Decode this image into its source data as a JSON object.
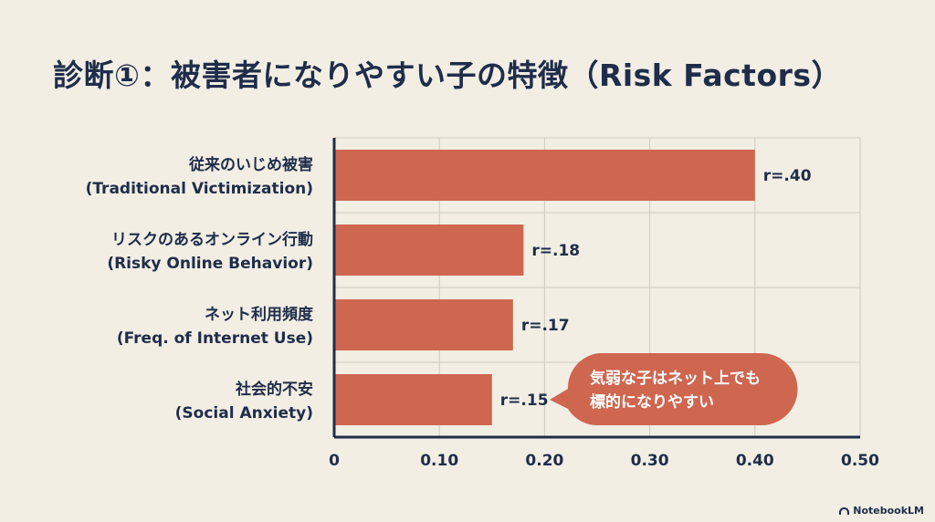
{
  "page_title": "診断①：被害者になりやすい子の特徴（Risk Factors）",
  "brand": "NotebookLM",
  "chart_data": {
    "type": "bar",
    "orientation": "horizontal",
    "categories": [
      [
        "従来のいじめ被害",
        "(Traditional Victimization)"
      ],
      [
        "リスクのあるオンライン行動",
        "(Risky Online Behavior)"
      ],
      [
        "ネット利用頻度",
        "(Freq. of Internet Use)"
      ],
      [
        "社会的不安",
        "(Social Anxiety)"
      ]
    ],
    "values": [
      0.4,
      0.18,
      0.17,
      0.15
    ],
    "value_labels": [
      "r=.40",
      "r=.18",
      "r=.17",
      "r=.15"
    ],
    "xlim": [
      0,
      0.5
    ],
    "xticks": [
      0,
      0.1,
      0.2,
      0.3,
      0.4,
      0.5
    ],
    "xtick_labels": [
      "0",
      "0.10",
      "0.20",
      "0.30",
      "0.40",
      "0.50"
    ],
    "grid": true,
    "bar_color": "#cf6650",
    "callout": {
      "lines": [
        "気弱な子はネット上でも",
        "標的になりやすい"
      ],
      "color": "#cf6650",
      "target_category": 3
    }
  }
}
